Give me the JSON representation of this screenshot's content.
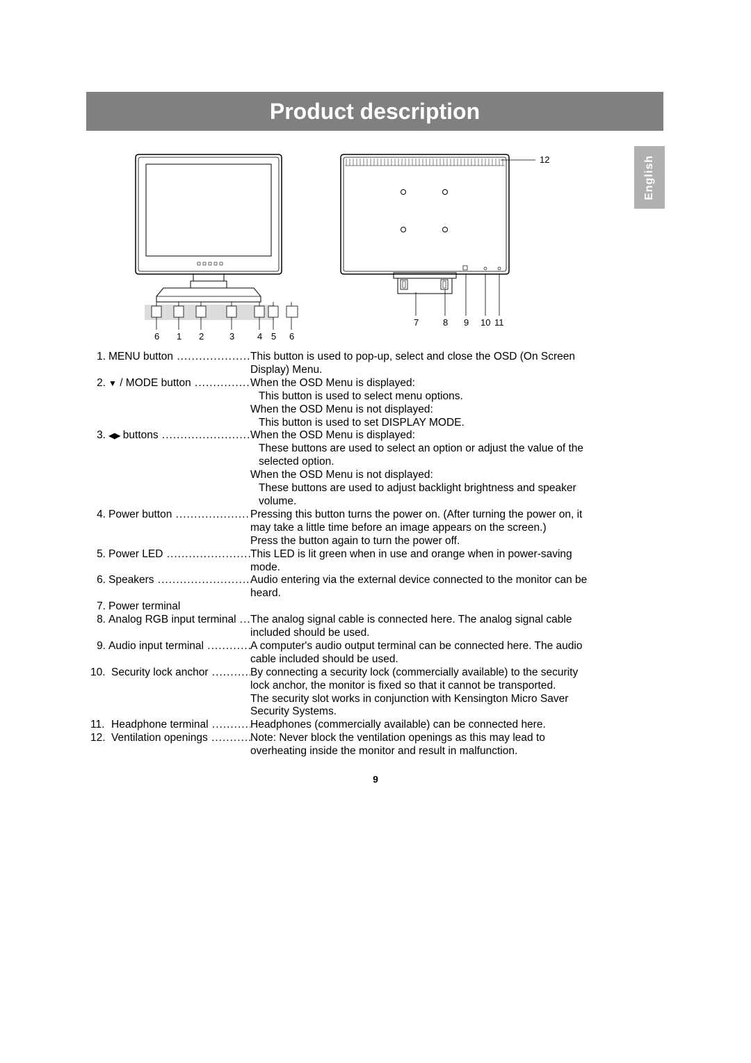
{
  "heading": "Product description",
  "side_tab": "English",
  "page_number": "9",
  "colors": {
    "heading_bg": "#808080",
    "heading_text": "#ffffff",
    "tab_bg": "#b0b0b0",
    "tab_text": "#ffffff",
    "body_text": "#000000",
    "page_bg": "#ffffff"
  },
  "diagrams": {
    "front": {
      "callouts": [
        "6",
        "1",
        "2",
        "3",
        "4",
        "5",
        "6"
      ],
      "button_count": 5
    },
    "rear": {
      "callouts_bottom": [
        "7",
        "8",
        "9",
        "10",
        "11"
      ],
      "callout_top_right": "12",
      "mount_holes": 4
    }
  },
  "items": [
    {
      "num": "1.",
      "term": "MENU button",
      "dots": "............................",
      "lines": [
        {
          "indent": 0,
          "text": "This button is used to pop-up, select and close the OSD (On Screen"
        },
        {
          "indent": 0,
          "text": "Display) Menu."
        }
      ]
    },
    {
      "num": "2.",
      "term_prefix_icon": "down",
      "term": " / MODE button",
      "dots": ".....................",
      "lines": [
        {
          "indent": 0,
          "text": "When the OSD Menu is displayed:"
        },
        {
          "indent": 1,
          "text": "This button is used to select menu options."
        },
        {
          "indent": 0,
          "text": "When the OSD Menu is not displayed:"
        },
        {
          "indent": 1,
          "text": "This button is used to set DISPLAY MODE."
        }
      ]
    },
    {
      "num": "3.",
      "term_prefix_icon": "leftright",
      "term": " buttons",
      "dots": "..............................",
      "lines": [
        {
          "indent": 0,
          "text": "When the OSD Menu is displayed:"
        },
        {
          "indent": 1,
          "text": "These buttons are used to select an option or adjust the value of the"
        },
        {
          "indent": 1,
          "text": "selected option."
        },
        {
          "indent": 0,
          "text": "When the OSD Menu is not displayed:"
        },
        {
          "indent": 1,
          "text": "These buttons are used to adjust backlight brightness and speaker"
        },
        {
          "indent": 1,
          "text": "volume."
        }
      ]
    },
    {
      "num": "4.",
      "term": "Power button",
      "dots": "............................",
      "lines": [
        {
          "indent": 0,
          "text": "Pressing this button turns the power on. (After turning the power on, it"
        },
        {
          "indent": 0,
          "text": "may take a little time before an image appears on the screen.)"
        },
        {
          "indent": 0,
          "text": "Press the button again to turn the power off."
        }
      ]
    },
    {
      "num": "5.",
      "term": "Power LED",
      "dots": "................................",
      "lines": [
        {
          "indent": 0,
          "text": "This LED is lit green when in use and orange when in power-saving"
        },
        {
          "indent": 0,
          "text": "mode."
        }
      ]
    },
    {
      "num": "6.",
      "term": "Speakers",
      "dots": "...................................",
      "lines": [
        {
          "indent": 0,
          "text": "Audio entering via the external device connected to the monitor can be"
        },
        {
          "indent": 0,
          "text": "heard."
        }
      ]
    },
    {
      "num": "7.",
      "term": "Power terminal",
      "dots": "",
      "lines": []
    },
    {
      "num": "8.",
      "term": "Analog RGB input terminal",
      "dots": " .....",
      "lines": [
        {
          "indent": 0,
          "text": "The analog signal cable is connected here. The analog signal cable"
        },
        {
          "indent": 0,
          "text": "included should be used."
        }
      ]
    },
    {
      "num": "9.",
      "term": "Audio input terminal",
      "dots": " .................",
      "lines": [
        {
          "indent": 0,
          "text": "A computer's audio output terminal can be connected here. The audio"
        },
        {
          "indent": 0,
          "text": "cable included should be used."
        }
      ]
    },
    {
      "num": "10.",
      "term": "Security lock anchor",
      "dots": " ...............",
      "lines": [
        {
          "indent": 0,
          "text": "By connecting a security lock (commercially available) to the security"
        },
        {
          "indent": 0,
          "text": "lock anchor, the monitor is fixed so that it cannot be transported."
        },
        {
          "indent": 0,
          "text": "The security slot works in conjunction with Kensington Micro Saver"
        },
        {
          "indent": 0,
          "text": "Security Systems."
        }
      ]
    },
    {
      "num": "11.",
      "term": "Headphone terminal",
      "dots": " ...............",
      "lines": [
        {
          "indent": 0,
          "text": "Headphones (commercially available) can be connected here."
        }
      ]
    },
    {
      "num": "12.",
      "term": "Ventilation openings",
      "dots": " ................",
      "lines": [
        {
          "indent": 0,
          "text": "Note: Never block the ventilation openings as this may lead to"
        },
        {
          "indent": 0,
          "text": "overheating inside the monitor and result in malfunction."
        }
      ]
    }
  ]
}
